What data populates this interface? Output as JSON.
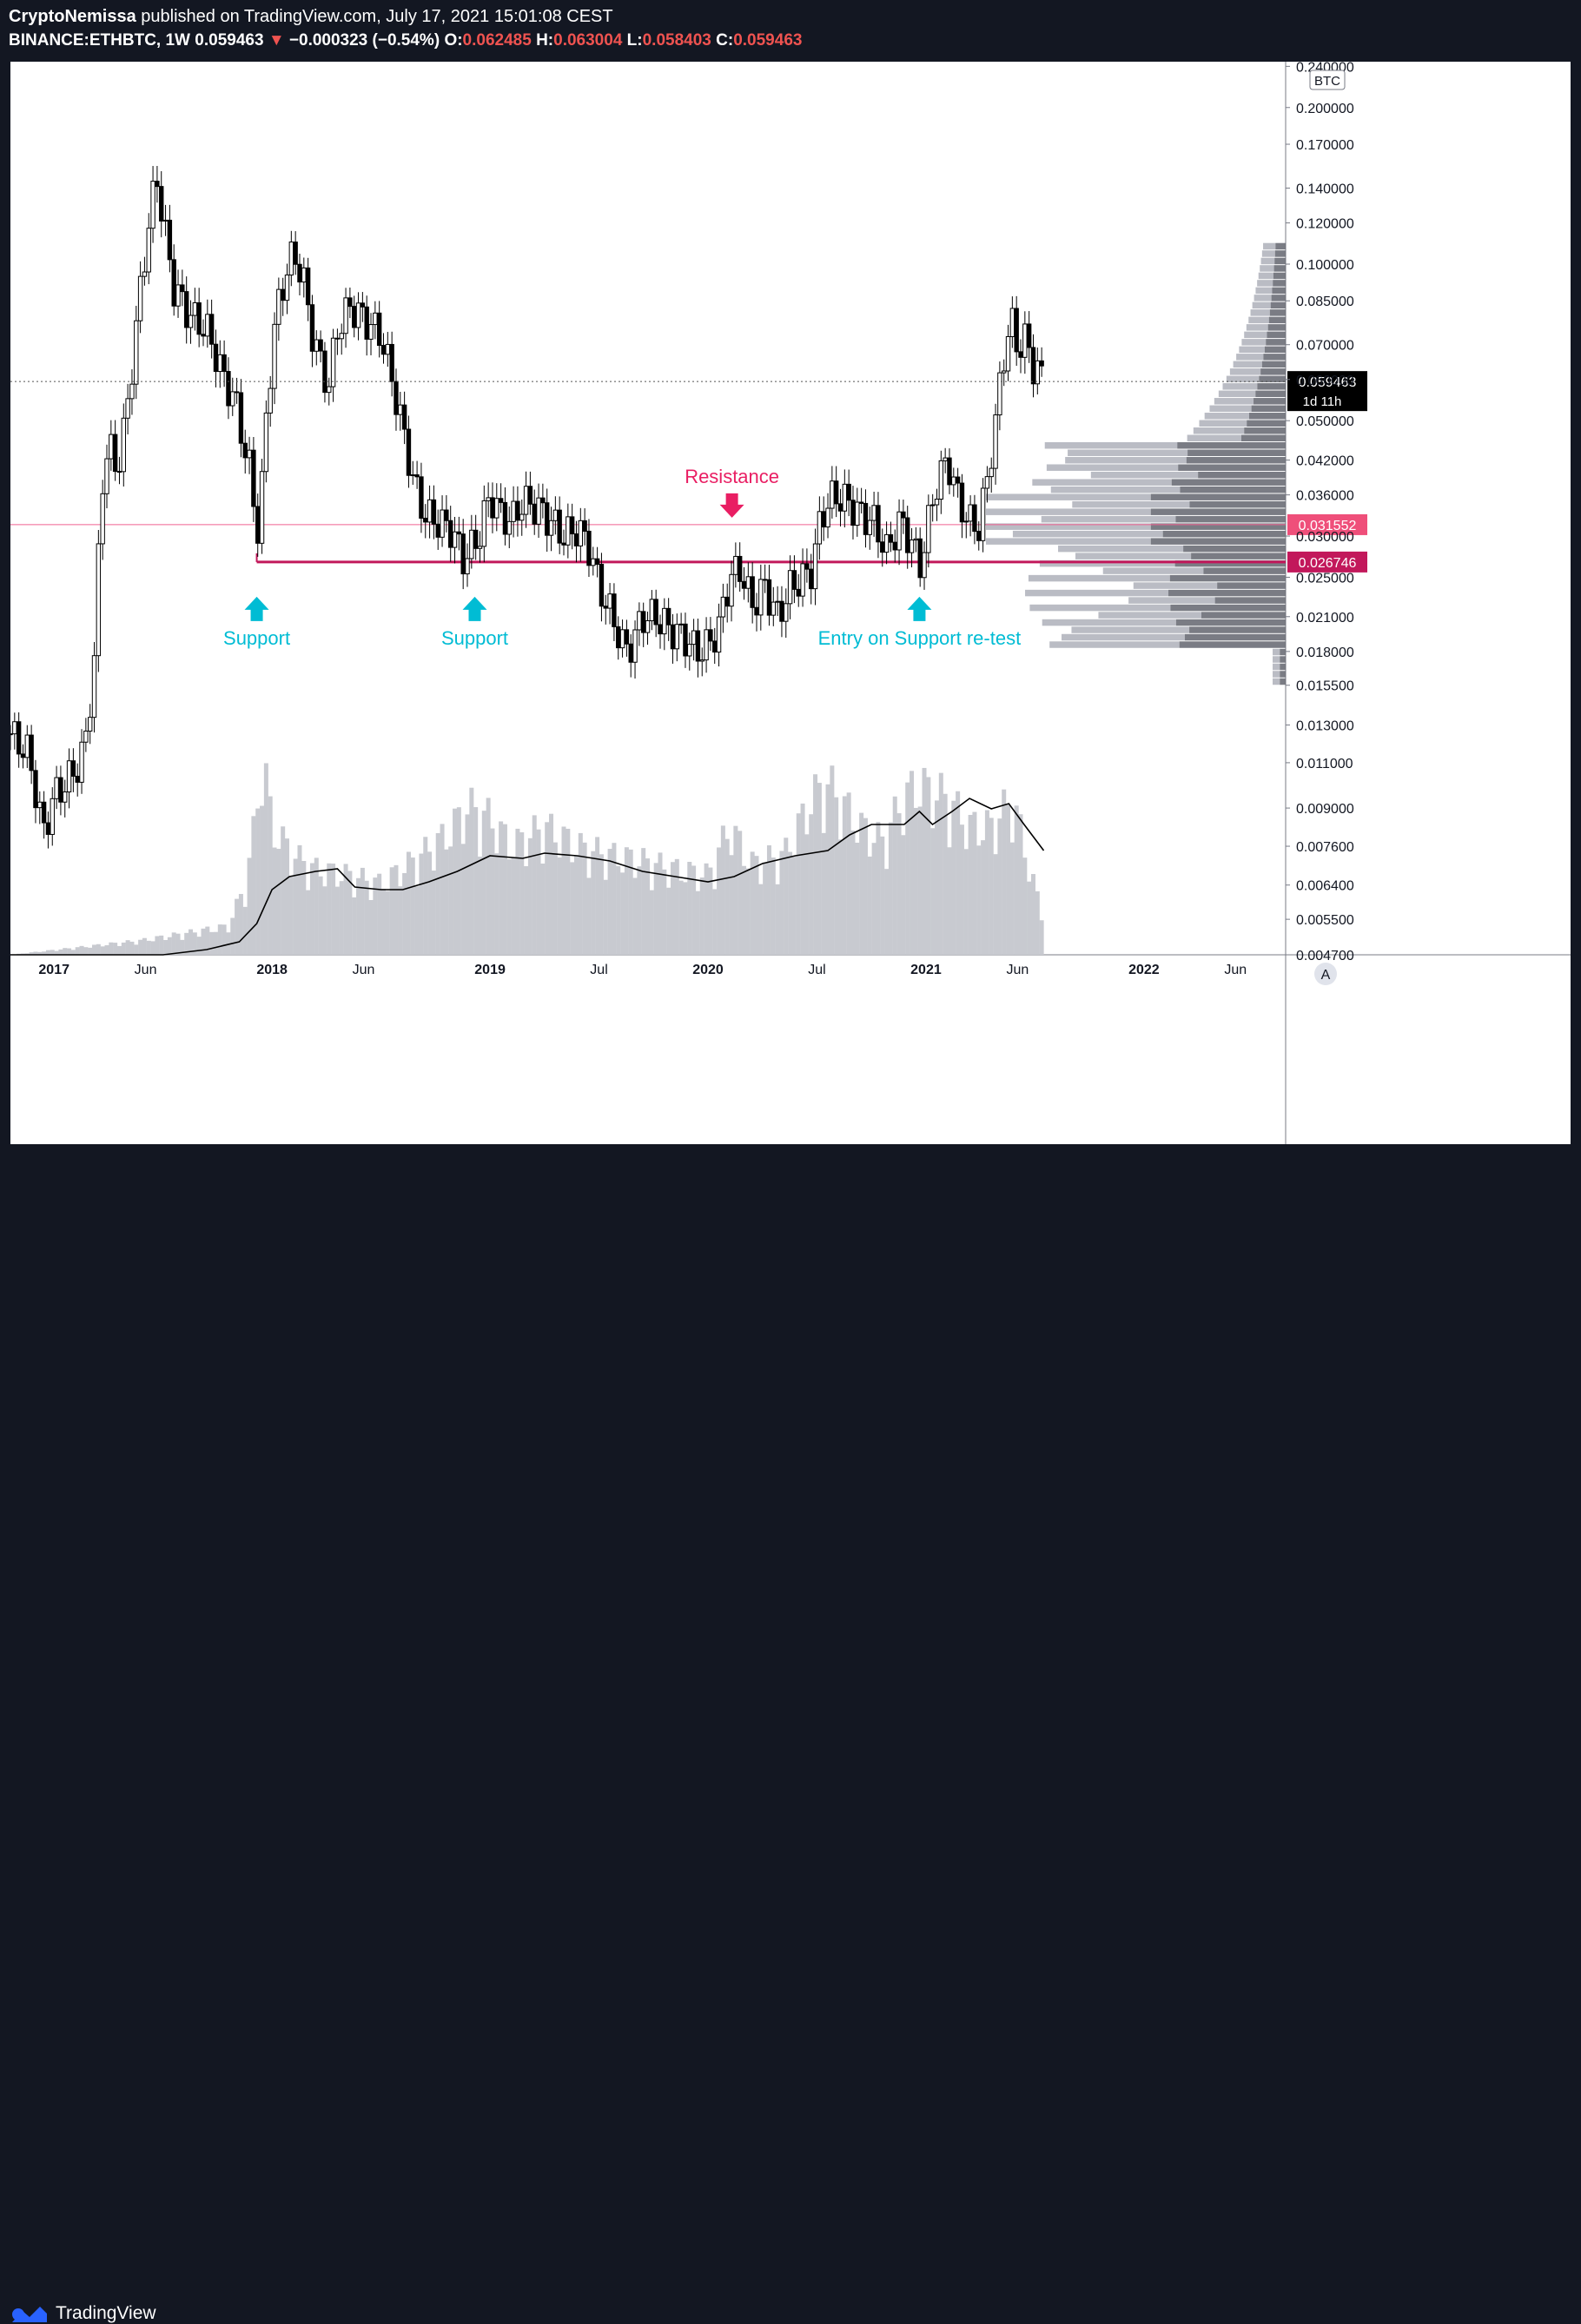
{
  "header": {
    "author": "CryptoNemissa",
    "published_text": " published on TradingView.com, July 17, 2021 15:01:08 CEST",
    "symbol": "BINANCE:ETHBTC, 1W",
    "last": "0.059463",
    "change_arrow": "▼",
    "change": "−0.000323 (−0.54%)",
    "o_label": "O:",
    "o": "0.062485",
    "h_label": "H:",
    "h": "0.063004",
    "l_label": "L:",
    "l": "0.058403",
    "c_label": "C:",
    "c": "0.059463"
  },
  "footer": {
    "brand": "TradingView",
    "logo_icon": "tradingview-logo-icon"
  },
  "chart_data": {
    "type": "candlestick",
    "currency_label": "BTC",
    "scale": "log",
    "ylim": [
      0.0047,
      0.245
    ],
    "y_ticks": [
      "0.240000",
      "0.200000",
      "0.170000",
      "0.140000",
      "0.120000",
      "0.100000",
      "0.085000",
      "0.070000",
      "0.060000",
      "0.050000",
      "0.042000",
      "0.036000",
      "0.030000",
      "0.025000",
      "0.021000",
      "0.018000",
      "0.015500",
      "0.013000",
      "0.011000",
      "0.009000",
      "0.007600",
      "0.006400",
      "0.005500",
      "0.004700"
    ],
    "y_tick_values": [
      0.24,
      0.2,
      0.17,
      0.14,
      0.12,
      0.1,
      0.085,
      0.07,
      0.06,
      0.05,
      0.042,
      0.036,
      0.03,
      0.025,
      0.021,
      0.018,
      0.0155,
      0.013,
      0.011,
      0.009,
      0.0076,
      0.0064,
      0.0055,
      0.0047
    ],
    "x_ticks": [
      {
        "label": "2017",
        "t": 2017.0,
        "bold": true
      },
      {
        "label": "Jun",
        "t": 2017.42,
        "bold": false
      },
      {
        "label": "2018",
        "t": 2018.0,
        "bold": true
      },
      {
        "label": "Jun",
        "t": 2018.42,
        "bold": false
      },
      {
        "label": "2019",
        "t": 2019.0,
        "bold": true
      },
      {
        "label": "Jul",
        "t": 2019.5,
        "bold": false
      },
      {
        "label": "2020",
        "t": 2020.0,
        "bold": true
      },
      {
        "label": "Jul",
        "t": 2020.5,
        "bold": false
      },
      {
        "label": "2021",
        "t": 2021.0,
        "bold": true
      },
      {
        "label": "Jun",
        "t": 2021.42,
        "bold": false
      },
      {
        "label": "2022",
        "t": 2022.0,
        "bold": true
      },
      {
        "label": "Jun",
        "t": 2022.42,
        "bold": false
      }
    ],
    "time_range": [
      2016.8,
      2022.65
    ],
    "price_path": [
      [
        2016.8,
        0.0125
      ],
      [
        2016.88,
        0.0115
      ],
      [
        2016.95,
        0.008
      ],
      [
        2017.0,
        0.0095
      ],
      [
        2017.05,
        0.01
      ],
      [
        2017.12,
        0.011
      ],
      [
        2017.15,
        0.0125
      ],
      [
        2017.19,
        0.018
      ],
      [
        2017.22,
        0.038
      ],
      [
        2017.25,
        0.045
      ],
      [
        2017.29,
        0.04
      ],
      [
        2017.33,
        0.05
      ],
      [
        2017.37,
        0.07
      ],
      [
        2017.41,
        0.1
      ],
      [
        2017.45,
        0.13
      ],
      [
        2017.47,
        0.15
      ],
      [
        2017.5,
        0.12
      ],
      [
        2017.55,
        0.09
      ],
      [
        2017.62,
        0.08
      ],
      [
        2017.7,
        0.075
      ],
      [
        2017.78,
        0.06
      ],
      [
        2017.83,
        0.055
      ],
      [
        2017.87,
        0.045
      ],
      [
        2017.9,
        0.04
      ],
      [
        2017.93,
        0.03
      ],
      [
        2017.95,
        0.035
      ],
      [
        2017.98,
        0.055
      ],
      [
        2018.02,
        0.08
      ],
      [
        2018.06,
        0.095
      ],
      [
        2018.1,
        0.105
      ],
      [
        2018.14,
        0.095
      ],
      [
        2018.18,
        0.075
      ],
      [
        2018.22,
        0.065
      ],
      [
        2018.26,
        0.058
      ],
      [
        2018.3,
        0.075
      ],
      [
        2018.36,
        0.083
      ],
      [
        2018.43,
        0.078
      ],
      [
        2018.5,
        0.073
      ],
      [
        2018.55,
        0.06
      ],
      [
        2018.6,
        0.048
      ],
      [
        2018.65,
        0.038
      ],
      [
        2018.7,
        0.033
      ],
      [
        2018.76,
        0.032
      ],
      [
        2018.82,
        0.031
      ],
      [
        2018.88,
        0.027
      ],
      [
        2018.95,
        0.03
      ],
      [
        2019.0,
        0.036
      ],
      [
        2019.05,
        0.033
      ],
      [
        2019.1,
        0.032
      ],
      [
        2019.15,
        0.035
      ],
      [
        2019.22,
        0.034
      ],
      [
        2019.28,
        0.032
      ],
      [
        2019.34,
        0.03
      ],
      [
        2019.4,
        0.031
      ],
      [
        2019.45,
        0.029
      ],
      [
        2019.5,
        0.024
      ],
      [
        2019.56,
        0.021
      ],
      [
        2019.62,
        0.018
      ],
      [
        2019.66,
        0.019
      ],
      [
        2019.7,
        0.021
      ],
      [
        2019.76,
        0.021
      ],
      [
        2019.82,
        0.02
      ],
      [
        2019.9,
        0.019
      ],
      [
        2019.95,
        0.018
      ],
      [
        2020.0,
        0.0185
      ],
      [
        2020.05,
        0.02
      ],
      [
        2020.1,
        0.025
      ],
      [
        2020.15,
        0.026
      ],
      [
        2020.2,
        0.022
      ],
      [
        2020.26,
        0.024
      ],
      [
        2020.32,
        0.021
      ],
      [
        2020.38,
        0.024
      ],
      [
        2020.44,
        0.025
      ],
      [
        2020.48,
        0.026
      ],
      [
        2020.52,
        0.033
      ],
      [
        2020.58,
        0.036
      ],
      [
        2020.64,
        0.035
      ],
      [
        2020.7,
        0.033
      ],
      [
        2020.76,
        0.032
      ],
      [
        2020.82,
        0.028
      ],
      [
        2020.88,
        0.032
      ],
      [
        2020.94,
        0.029
      ],
      [
        2020.97,
        0.026
      ],
      [
        2021.0,
        0.03
      ],
      [
        2021.05,
        0.038
      ],
      [
        2021.1,
        0.042
      ],
      [
        2021.15,
        0.035
      ],
      [
        2021.2,
        0.032
      ],
      [
        2021.24,
        0.031
      ],
      [
        2021.28,
        0.038
      ],
      [
        2021.32,
        0.05
      ],
      [
        2021.36,
        0.068
      ],
      [
        2021.39,
        0.078
      ],
      [
        2021.42,
        0.069
      ],
      [
        2021.46,
        0.072
      ],
      [
        2021.49,
        0.064
      ],
      [
        2021.52,
        0.062
      ],
      [
        2021.54,
        0.0594
      ]
    ],
    "volume_path": [
      [
        2016.8,
        0.0
      ],
      [
        2017.4,
        0.05
      ],
      [
        2017.8,
        0.1
      ],
      [
        2017.88,
        0.25
      ],
      [
        2017.92,
        0.45
      ],
      [
        2017.96,
        0.7
      ],
      [
        2018.0,
        0.45
      ],
      [
        2018.1,
        0.35
      ],
      [
        2018.2,
        0.3
      ],
      [
        2018.35,
        0.28
      ],
      [
        2018.5,
        0.25
      ],
      [
        2018.65,
        0.33
      ],
      [
        2018.8,
        0.42
      ],
      [
        2018.9,
        0.52
      ],
      [
        2019.0,
        0.48
      ],
      [
        2019.1,
        0.38
      ],
      [
        2019.25,
        0.45
      ],
      [
        2019.4,
        0.38
      ],
      [
        2019.55,
        0.35
      ],
      [
        2019.7,
        0.33
      ],
      [
        2019.85,
        0.3
      ],
      [
        2020.0,
        0.28
      ],
      [
        2020.1,
        0.45
      ],
      [
        2020.2,
        0.32
      ],
      [
        2020.35,
        0.35
      ],
      [
        2020.48,
        0.55
      ],
      [
        2020.55,
        0.6
      ],
      [
        2020.6,
        0.55
      ],
      [
        2020.7,
        0.45
      ],
      [
        2020.8,
        0.4
      ],
      [
        2020.9,
        0.55
      ],
      [
        2020.97,
        0.6
      ],
      [
        2021.0,
        0.58
      ],
      [
        2021.1,
        0.55
      ],
      [
        2021.2,
        0.45
      ],
      [
        2021.3,
        0.45
      ],
      [
        2021.4,
        0.55
      ],
      [
        2021.46,
        0.35
      ],
      [
        2021.54,
        0.12
      ]
    ],
    "volume_ma": [
      [
        2016.8,
        0.0
      ],
      [
        2017.5,
        0.0
      ],
      [
        2017.7,
        0.02
      ],
      [
        2017.85,
        0.05
      ],
      [
        2017.93,
        0.12
      ],
      [
        2018.0,
        0.25
      ],
      [
        2018.08,
        0.3
      ],
      [
        2018.2,
        0.32
      ],
      [
        2018.3,
        0.33
      ],
      [
        2018.38,
        0.26
      ],
      [
        2018.5,
        0.25
      ],
      [
        2018.6,
        0.25
      ],
      [
        2018.72,
        0.28
      ],
      [
        2018.85,
        0.32
      ],
      [
        2019.0,
        0.38
      ],
      [
        2019.15,
        0.37
      ],
      [
        2019.25,
        0.39
      ],
      [
        2019.4,
        0.38
      ],
      [
        2019.55,
        0.36
      ],
      [
        2019.7,
        0.32
      ],
      [
        2019.85,
        0.3
      ],
      [
        2020.0,
        0.28
      ],
      [
        2020.12,
        0.3
      ],
      [
        2020.25,
        0.35
      ],
      [
        2020.4,
        0.38
      ],
      [
        2020.55,
        0.4
      ],
      [
        2020.65,
        0.46
      ],
      [
        2020.75,
        0.5
      ],
      [
        2020.9,
        0.5
      ],
      [
        2020.97,
        0.55
      ],
      [
        2021.03,
        0.5
      ],
      [
        2021.12,
        0.55
      ],
      [
        2021.2,
        0.6
      ],
      [
        2021.3,
        0.56
      ],
      [
        2021.38,
        0.58
      ],
      [
        2021.45,
        0.5
      ],
      [
        2021.54,
        0.4
      ]
    ],
    "horizontal_lines": [
      {
        "price": 0.031552,
        "label": "0.031552",
        "style": "thin"
      },
      {
        "price": 0.026746,
        "label": "0.026746",
        "style": "thick",
        "from_t": 2017.93
      }
    ],
    "last_price_label": "0.059463",
    "countdown_label": "1d 11h",
    "annotations": [
      {
        "text": "Support",
        "t": 2017.93,
        "arrow": "up"
      },
      {
        "text": "Support",
        "t": 2018.93,
        "arrow": "up"
      },
      {
        "text": "Resistance",
        "t": 2020.11,
        "arrow": "down"
      },
      {
        "text": "Entry on Support re-test",
        "t": 2020.97,
        "arrow": "up"
      }
    ],
    "auto_scale_button": "A"
  }
}
